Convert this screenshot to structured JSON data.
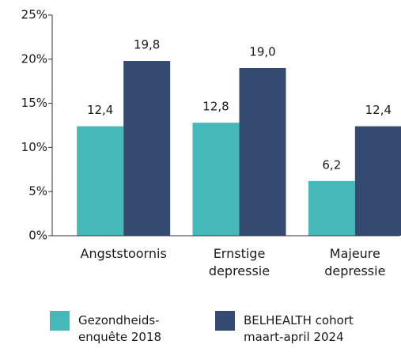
{
  "chart_data": {
    "type": "bar",
    "categories": [
      "Angststoornis",
      "Ernstige depressie",
      "Majeure depressie"
    ],
    "series": [
      {
        "name": "Gezondheids- enquête 2018",
        "color": "#45b9b9",
        "values": [
          12.4,
          12.8,
          6.2
        ],
        "value_labels": [
          "12,4",
          "12,8",
          "6,2"
        ]
      },
      {
        "name": "BELHEALTH cohort maart-april 2024",
        "color": "#354a71",
        "values": [
          19.8,
          19.0,
          12.4
        ],
        "value_labels": [
          "19,8",
          "19,0",
          "12,4"
        ]
      }
    ],
    "ylim": [
      0,
      25
    ],
    "yticks": [
      {
        "value": 0,
        "label": "0%"
      },
      {
        "value": 5,
        "label": "5%"
      },
      {
        "value": 10,
        "label": "10%"
      },
      {
        "value": 15,
        "label": "15%"
      },
      {
        "value": 20,
        "label": "20%"
      },
      {
        "value": 25,
        "label": "25%"
      }
    ],
    "grid": false
  }
}
